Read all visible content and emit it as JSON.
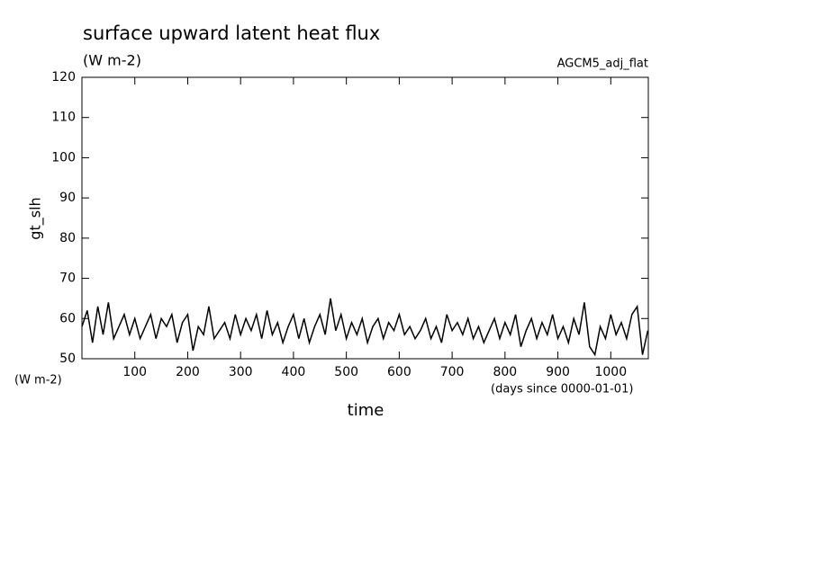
{
  "chart_data": {
    "type": "line",
    "title": "surface upward latent heat flux",
    "subtitle": "(W m-2)",
    "annotation": "AGCM5_adj_flat",
    "ylabel": "gt_slh",
    "yunits": "(W m-2)",
    "xlabel": "time",
    "xunits": "(days since 0000-01-01)",
    "color": "#000000",
    "xlim": [
      0,
      1071
    ],
    "ylim": [
      50,
      120
    ],
    "xticks": [
      100,
      200,
      300,
      400,
      500,
      600,
      700,
      800,
      900,
      1000
    ],
    "yticks": [
      50,
      60,
      70,
      80,
      90,
      100,
      110,
      120
    ],
    "x": [
      0,
      10,
      20,
      30,
      40,
      50,
      60,
      70,
      80,
      90,
      100,
      110,
      120,
      130,
      140,
      150,
      160,
      170,
      180,
      190,
      200,
      210,
      220,
      230,
      240,
      250,
      260,
      270,
      280,
      290,
      300,
      310,
      320,
      330,
      340,
      350,
      360,
      370,
      380,
      390,
      400,
      410,
      420,
      430,
      440,
      450,
      460,
      470,
      480,
      490,
      500,
      510,
      520,
      530,
      540,
      550,
      560,
      570,
      580,
      590,
      600,
      610,
      620,
      630,
      640,
      650,
      660,
      670,
      680,
      690,
      700,
      710,
      720,
      730,
      740,
      750,
      760,
      770,
      780,
      790,
      800,
      810,
      820,
      830,
      840,
      850,
      860,
      870,
      880,
      890,
      900,
      910,
      920,
      930,
      940,
      950,
      960,
      970,
      980,
      990,
      1000,
      1010,
      1020,
      1030,
      1040,
      1050,
      1060,
      1070
    ],
    "values": [
      58,
      62,
      54,
      63,
      56,
      64,
      55,
      58,
      61,
      56,
      60,
      55,
      58,
      61,
      55,
      60,
      58,
      61,
      54,
      59,
      61,
      52,
      58,
      56,
      63,
      55,
      57,
      59,
      55,
      61,
      56,
      60,
      57,
      61,
      55,
      62,
      56,
      59,
      54,
      58,
      61,
      55,
      60,
      54,
      58,
      61,
      56,
      65,
      57,
      61,
      55,
      59,
      56,
      60,
      54,
      58,
      60,
      55,
      59,
      57,
      61,
      56,
      58,
      55,
      57,
      60,
      55,
      58,
      54,
      61,
      57,
      59,
      56,
      60,
      55,
      58,
      54,
      57,
      60,
      55,
      59,
      56,
      61,
      53,
      57,
      60,
      55,
      59,
      56,
      61,
      55,
      58,
      54,
      60,
      56,
      64,
      53,
      51,
      58,
      55,
      61,
      56,
      59,
      55,
      61,
      63,
      51,
      57
    ]
  }
}
